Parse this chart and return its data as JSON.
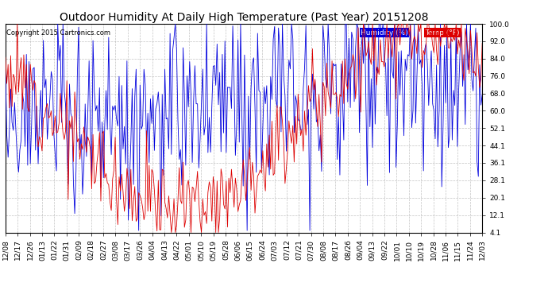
{
  "title": "Outdoor Humidity At Daily High Temperature (Past Year) 20151208",
  "copyright": "Copyright 2015 Cartronics.com",
  "legend_humidity": "Humidity (%)",
  "legend_temp": "Temp (°F)",
  "ylim": [
    4.1,
    100.0
  ],
  "yticks": [
    4.1,
    12.1,
    20.1,
    28.1,
    36.1,
    44.1,
    52.1,
    60.0,
    68.0,
    76.0,
    84.0,
    92.0,
    100.0
  ],
  "ytick_labels": [
    "4.1",
    "12.1",
    "20.1",
    "28.1",
    "36.1",
    "44.1",
    "52.1",
    "60.0",
    "68.0",
    "76.0",
    "84.0",
    "92.0",
    "100.0"
  ],
  "xtick_labels": [
    "12/08",
    "12/17",
    "12/26",
    "01/13",
    "01/22",
    "01/31",
    "02/09",
    "02/18",
    "02/27",
    "03/08",
    "03/17",
    "03/26",
    "04/04",
    "04/13",
    "04/22",
    "05/01",
    "05/10",
    "05/19",
    "05/28",
    "06/06",
    "06/15",
    "06/24",
    "07/03",
    "07/12",
    "07/21",
    "07/30",
    "08/08",
    "08/17",
    "08/26",
    "09/04",
    "09/13",
    "09/22",
    "10/01",
    "10/10",
    "10/19",
    "10/28",
    "11/06",
    "11/15",
    "11/24",
    "12/03"
  ],
  "background_color": "#ffffff",
  "plot_bg_color": "#ffffff",
  "grid_color": "#aaaaaa",
  "humidity_color": "#0000dd",
  "temp_color": "#dd0000",
  "title_fontsize": 10,
  "copyright_fontsize": 6,
  "tick_fontsize": 6.5,
  "legend_fontsize": 6.5,
  "legend_bg_humidity": "#0000dd",
  "legend_bg_temp": "#dd0000",
  "n_points": 366,
  "figwidth": 6.9,
  "figheight": 3.75,
  "dpi": 100
}
